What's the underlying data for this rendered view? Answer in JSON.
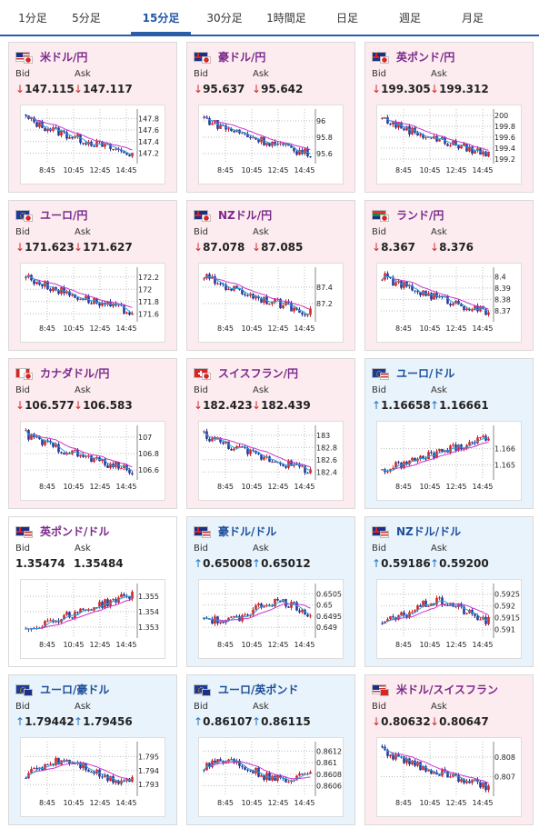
{
  "tabs": [
    "1分足",
    "5分足",
    "15分足",
    "30分足",
    "1時間足",
    "日足",
    "週足",
    "月足"
  ],
  "active_tab": 2,
  "bid_label": "Bid",
  "ask_label": "Ask",
  "colors": {
    "accent": "#2a5fa8",
    "down_bg": "#fdecef",
    "up_bg": "#e9f3fb",
    "down": "#d02828",
    "up": "#1a73c9",
    "ma": "#cc33cc",
    "ma_fast": "#2aa0d8"
  },
  "pairs": [
    {
      "name": "米ドル/円",
      "flag": "us-jp",
      "bid": "147.115",
      "ask": "147.117",
      "dir": "down",
      "bid_dir": "down",
      "ask_dir": "down",
      "chart_data": {
        "type": "candlestick",
        "x_ticks": [
          "8:45",
          "10:45",
          "12:45",
          "14:45"
        ],
        "y_ticks": [
          "147.8",
          "147.6",
          "147.4",
          "147.2"
        ],
        "ylim": [
          147.05,
          147.9
        ],
        "trend": "down"
      }
    },
    {
      "name": "豪ドル/円",
      "flag": "au-jp",
      "bid": "95.637",
      "ask": "95.642",
      "dir": "down",
      "bid_dir": "down",
      "ask_dir": "down",
      "chart_data": {
        "type": "candlestick",
        "x_ticks": [
          "8:45",
          "10:45",
          "12:45",
          "14:45"
        ],
        "y_ticks": [
          "96",
          "95.8",
          "95.6"
        ],
        "ylim": [
          95.5,
          96.1
        ],
        "trend": "down"
      }
    },
    {
      "name": "英ポンド/円",
      "flag": "gb-jp",
      "bid": "199.305",
      "ask": "199.312",
      "dir": "down",
      "bid_dir": "down",
      "ask_dir": "down",
      "chart_data": {
        "type": "candlestick",
        "x_ticks": [
          "8:45",
          "10:45",
          "12:45",
          "14:45"
        ],
        "y_ticks": [
          "200",
          "199.8",
          "199.6",
          "199.4",
          "199.2"
        ],
        "ylim": [
          199.15,
          200.05
        ],
        "trend": "down"
      }
    },
    {
      "name": "ユーロ/円",
      "flag": "eu-jp",
      "bid": "171.623",
      "ask": "171.627",
      "dir": "down",
      "bid_dir": "down",
      "ask_dir": "down",
      "chart_data": {
        "type": "candlestick",
        "x_ticks": [
          "8:45",
          "10:45",
          "12:45",
          "14:45"
        ],
        "y_ticks": [
          "172.2",
          "172",
          "171.8",
          "171.6"
        ],
        "ylim": [
          171.5,
          172.3
        ],
        "trend": "down"
      }
    },
    {
      "name": "NZドル/円",
      "flag": "nz-jp",
      "bid": "87.078",
      "ask": "87.085",
      "dir": "down",
      "bid_dir": "down",
      "ask_dir": "down",
      "chart_data": {
        "type": "candlestick",
        "x_ticks": [
          "8:45",
          "10:45",
          "12:45",
          "14:45"
        ],
        "y_ticks": [
          "87.4",
          "87.2"
        ],
        "ylim": [
          87.0,
          87.6
        ],
        "trend": "down"
      }
    },
    {
      "name": "ランド/円",
      "flag": "za-jp",
      "bid": "8.367",
      "ask": "8.376",
      "dir": "down",
      "bid_dir": "down",
      "ask_dir": "down",
      "chart_data": {
        "type": "candlestick",
        "x_ticks": [
          "8:45",
          "10:45",
          "12:45",
          "14:45"
        ],
        "y_ticks": [
          "8.4",
          "8.39",
          "8.38",
          "8.37"
        ],
        "ylim": [
          8.362,
          8.405
        ],
        "trend": "down"
      }
    },
    {
      "name": "カナダドル/円",
      "flag": "ca-jp",
      "bid": "106.577",
      "ask": "106.583",
      "dir": "down",
      "bid_dir": "down",
      "ask_dir": "down",
      "chart_data": {
        "type": "candlestick",
        "x_ticks": [
          "8:45",
          "10:45",
          "12:45",
          "14:45"
        ],
        "y_ticks": [
          "107",
          "106.8",
          "106.6"
        ],
        "ylim": [
          106.5,
          107.1
        ],
        "trend": "down"
      }
    },
    {
      "name": "スイスフラン/円",
      "flag": "ch-jp",
      "bid": "182.423",
      "ask": "182.439",
      "dir": "down",
      "bid_dir": "down",
      "ask_dir": "down",
      "chart_data": {
        "type": "candlestick",
        "x_ticks": [
          "8:45",
          "10:45",
          "12:45",
          "14:45"
        ],
        "y_ticks": [
          "183",
          "182.8",
          "182.6",
          "182.4"
        ],
        "ylim": [
          182.3,
          183.1
        ],
        "trend": "down"
      }
    },
    {
      "name": "ユーロ/ドル",
      "flag": "eu-us",
      "bid": "1.16658",
      "ask": "1.16661",
      "dir": "up",
      "bid_dir": "up",
      "ask_dir": "up",
      "chart_data": {
        "type": "candlestick",
        "x_ticks": [
          "8:45",
          "10:45",
          "12:45",
          "14:45"
        ],
        "y_ticks": [
          "1.166",
          "1.165"
        ],
        "ylim": [
          1.1642,
          1.1672
        ],
        "trend": "up"
      }
    },
    {
      "name": "英ポンド/ドル",
      "flag": "gb-us",
      "bid": "1.35474",
      "ask": "1.35484",
      "dir": "neutral",
      "bid_dir": "none",
      "ask_dir": "none",
      "chart_data": {
        "type": "candlestick",
        "x_ticks": [
          "8:45",
          "10:45",
          "12:45",
          "14:45"
        ],
        "y_ticks": [
          "1.355",
          "1.354",
          "1.353"
        ],
        "ylim": [
          1.3524,
          1.3556
        ],
        "trend": "up"
      }
    },
    {
      "name": "豪ドル/ドル",
      "flag": "au-us",
      "bid": "0.65008",
      "ask": "0.65012",
      "dir": "up",
      "bid_dir": "up",
      "ask_dir": "up",
      "chart_data": {
        "type": "candlestick",
        "x_ticks": [
          "8:45",
          "10:45",
          "12:45",
          "14:45"
        ],
        "y_ticks": [
          "0.6505",
          "0.65",
          "0.6495",
          "0.649"
        ],
        "ylim": [
          0.6486,
          0.6508
        ],
        "trend": "flat"
      }
    },
    {
      "name": "NZドル/ドル",
      "flag": "nz-us",
      "bid": "0.59186",
      "ask": "0.59200",
      "dir": "up",
      "bid_dir": "up",
      "ask_dir": "up",
      "chart_data": {
        "type": "candlestick",
        "x_ticks": [
          "8:45",
          "10:45",
          "12:45",
          "14:45"
        ],
        "y_ticks": [
          "0.5925",
          "0.592",
          "0.5915",
          "0.591"
        ],
        "ylim": [
          0.5907,
          0.5928
        ],
        "trend": "flat"
      }
    },
    {
      "name": "ユーロ/豪ドル",
      "flag": "eu-au",
      "bid": "1.79442",
      "ask": "1.79456",
      "dir": "up",
      "bid_dir": "up",
      "ask_dir": "up",
      "chart_data": {
        "type": "candlestick",
        "x_ticks": [
          "8:45",
          "10:45",
          "12:45",
          "14:45"
        ],
        "y_ticks": [
          "1.795",
          "1.794",
          "1.793"
        ],
        "ylim": [
          1.7923,
          1.7958
        ],
        "trend": "flat"
      }
    },
    {
      "name": "ユーロ/英ポンド",
      "flag": "eu-gb",
      "bid": "0.86107",
      "ask": "0.86115",
      "dir": "up",
      "bid_dir": "up",
      "ask_dir": "up",
      "chart_data": {
        "type": "candlestick",
        "x_ticks": [
          "8:45",
          "10:45",
          "12:45",
          "14:45"
        ],
        "y_ticks": [
          "0.8612",
          "0.861",
          "0.8608",
          "0.8606"
        ],
        "ylim": [
          0.86045,
          0.8613
        ],
        "trend": "flat"
      }
    },
    {
      "name": "米ドル/スイスフラン",
      "flag": "us-ch",
      "bid": "0.80632",
      "ask": "0.80647",
      "dir": "down",
      "bid_dir": "down",
      "ask_dir": "down",
      "chart_data": {
        "type": "candlestick",
        "x_ticks": [
          "8:45",
          "10:45",
          "12:45",
          "14:45"
        ],
        "y_ticks": [
          "0.808",
          "0.807"
        ],
        "ylim": [
          0.8061,
          0.8086
        ],
        "trend": "down"
      }
    }
  ]
}
